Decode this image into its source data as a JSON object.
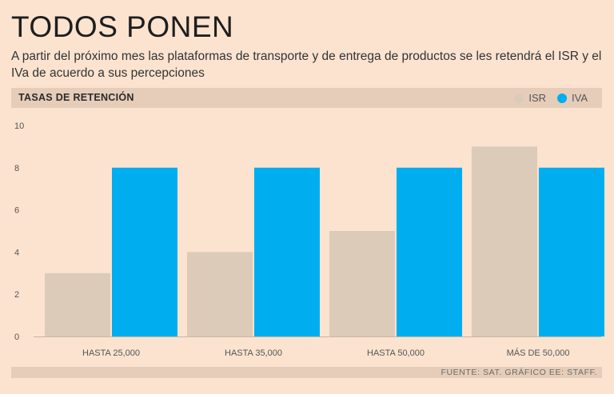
{
  "header": {
    "title": "TODOS PONEN",
    "subtitle": "A partir del próximo mes las plataformas de transporte y de entrega de productos se les retendrá el ISR y el IVa de acuerdo a sus percepciones",
    "section_label": "TASAS DE RETENCIÓN"
  },
  "legend": [
    {
      "label": "ISR",
      "color": "#dccbb9"
    },
    {
      "label": "IVA",
      "color": "#00aeef"
    }
  ],
  "footer": {
    "source": "FUENTE: SAT. GRÁFICO EE: STAFF."
  },
  "chart_data": {
    "type": "bar",
    "title": "TASAS DE RETENCIÓN",
    "categories": [
      "HASTA 25,000",
      "HASTA 35,000",
      "HASTA 50,000",
      "MÁS DE 50,000"
    ],
    "series": [
      {
        "name": "ISR",
        "color": "#dccbb9",
        "values": [
          3,
          4,
          5,
          9
        ]
      },
      {
        "name": "IVA",
        "color": "#00aeef",
        "values": [
          8,
          8,
          8,
          8
        ]
      }
    ],
    "yticks": [
      0,
      2,
      4,
      6,
      8,
      10
    ],
    "ylim": [
      0,
      10
    ],
    "xlabel": "",
    "ylabel": ""
  }
}
